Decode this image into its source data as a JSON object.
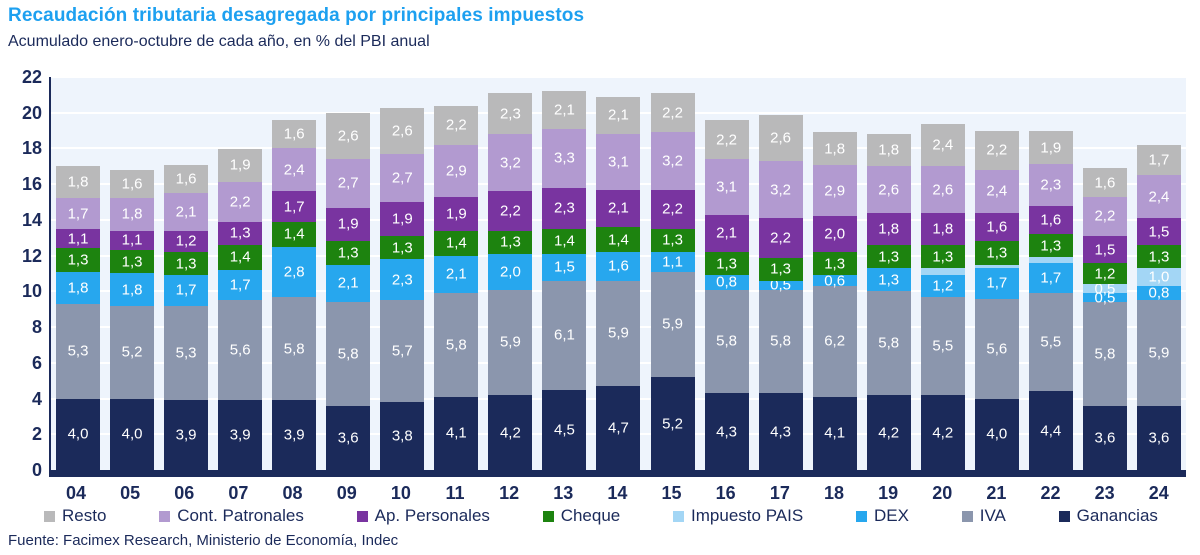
{
  "title": "Recaudación tributaria desagregada por principales impuestos",
  "subtitle": "Acumulado enero-octubre de cada año, en % del PBI anual",
  "source": "Fuente: Facimex Research, Ministerio de Economía, Indec",
  "colors": {
    "title_accent": "#1da0f0",
    "text_navy": "#1b2a5a",
    "plot_background": "#eef4fc",
    "gridline": "#ffffff",
    "axis_line": "#1b2a5a"
  },
  "chart_data": {
    "type": "bar",
    "stacked": true,
    "title": "Recaudación tributaria desagregada por principales impuestos",
    "subtitle": "Acumulado enero-octubre de cada año, en % del PBI anual",
    "xlabel": "",
    "ylabel": "% del PBI anual",
    "ylim": [
      0,
      22
    ],
    "ytick_step": 2,
    "grid": true,
    "legend_position": "bottom",
    "decimal_separator": ",",
    "label_min": 0.45,
    "categories": [
      "04",
      "05",
      "06",
      "07",
      "08",
      "09",
      "10",
      "11",
      "12",
      "13",
      "14",
      "15",
      "16",
      "17",
      "18",
      "19",
      "20",
      "21",
      "22",
      "23",
      "24"
    ],
    "series": [
      {
        "name": "Ganancias",
        "color": "#1b2a5a",
        "values": [
          4.0,
          4.0,
          3.9,
          3.9,
          3.9,
          3.6,
          3.8,
          4.1,
          4.2,
          4.5,
          4.7,
          5.2,
          4.3,
          4.3,
          4.1,
          4.2,
          4.2,
          4.0,
          4.4,
          3.6,
          3.6
        ]
      },
      {
        "name": "IVA",
        "color": "#8b96ad",
        "values": [
          5.3,
          5.2,
          5.3,
          5.6,
          5.8,
          5.8,
          5.7,
          5.8,
          5.9,
          6.1,
          5.9,
          5.9,
          5.8,
          5.8,
          6.2,
          5.8,
          5.5,
          5.6,
          5.5,
          5.8,
          5.9
        ]
      },
      {
        "name": "DEX",
        "color": "#27a7ee",
        "values": [
          1.8,
          1.8,
          1.7,
          1.7,
          2.8,
          2.1,
          2.3,
          2.1,
          2.0,
          1.5,
          1.6,
          1.1,
          0.8,
          0.5,
          0.6,
          1.3,
          1.2,
          1.7,
          1.7,
          0.5,
          0.8
        ]
      },
      {
        "name": "Impuesto PAIS",
        "color": "#a3d6f5",
        "values": [
          null,
          null,
          null,
          null,
          null,
          null,
          null,
          null,
          null,
          null,
          null,
          null,
          null,
          null,
          null,
          null,
          0.4,
          0.2,
          0.3,
          0.5,
          1.0
        ]
      },
      {
        "name": "Cheque",
        "color": "#1d830f",
        "values": [
          1.3,
          1.3,
          1.3,
          1.4,
          1.4,
          1.3,
          1.3,
          1.4,
          1.3,
          1.4,
          1.4,
          1.3,
          1.3,
          1.3,
          1.3,
          1.3,
          1.3,
          1.3,
          1.3,
          1.2,
          1.3
        ]
      },
      {
        "name": "Ap. Personales",
        "color": "#7934a0",
        "values": [
          1.1,
          1.1,
          1.2,
          1.3,
          1.7,
          1.9,
          1.9,
          1.9,
          2.2,
          2.3,
          2.1,
          2.2,
          2.1,
          2.2,
          2.0,
          1.8,
          1.8,
          1.6,
          1.6,
          1.5,
          1.5
        ]
      },
      {
        "name": "Cont. Patronales",
        "color": "#b29ad0",
        "values": [
          1.7,
          1.8,
          2.1,
          2.2,
          2.4,
          2.7,
          2.7,
          2.9,
          3.2,
          3.3,
          3.1,
          3.2,
          3.1,
          3.2,
          2.9,
          2.6,
          2.6,
          2.4,
          2.3,
          2.2,
          2.4
        ]
      },
      {
        "name": "Resto",
        "color": "#b9b9ba",
        "values": [
          1.8,
          1.6,
          1.6,
          1.9,
          1.6,
          2.6,
          2.6,
          2.2,
          2.3,
          2.1,
          2.1,
          2.2,
          2.2,
          2.6,
          1.8,
          1.8,
          2.4,
          2.2,
          1.9,
          1.6,
          1.7
        ]
      }
    ]
  }
}
